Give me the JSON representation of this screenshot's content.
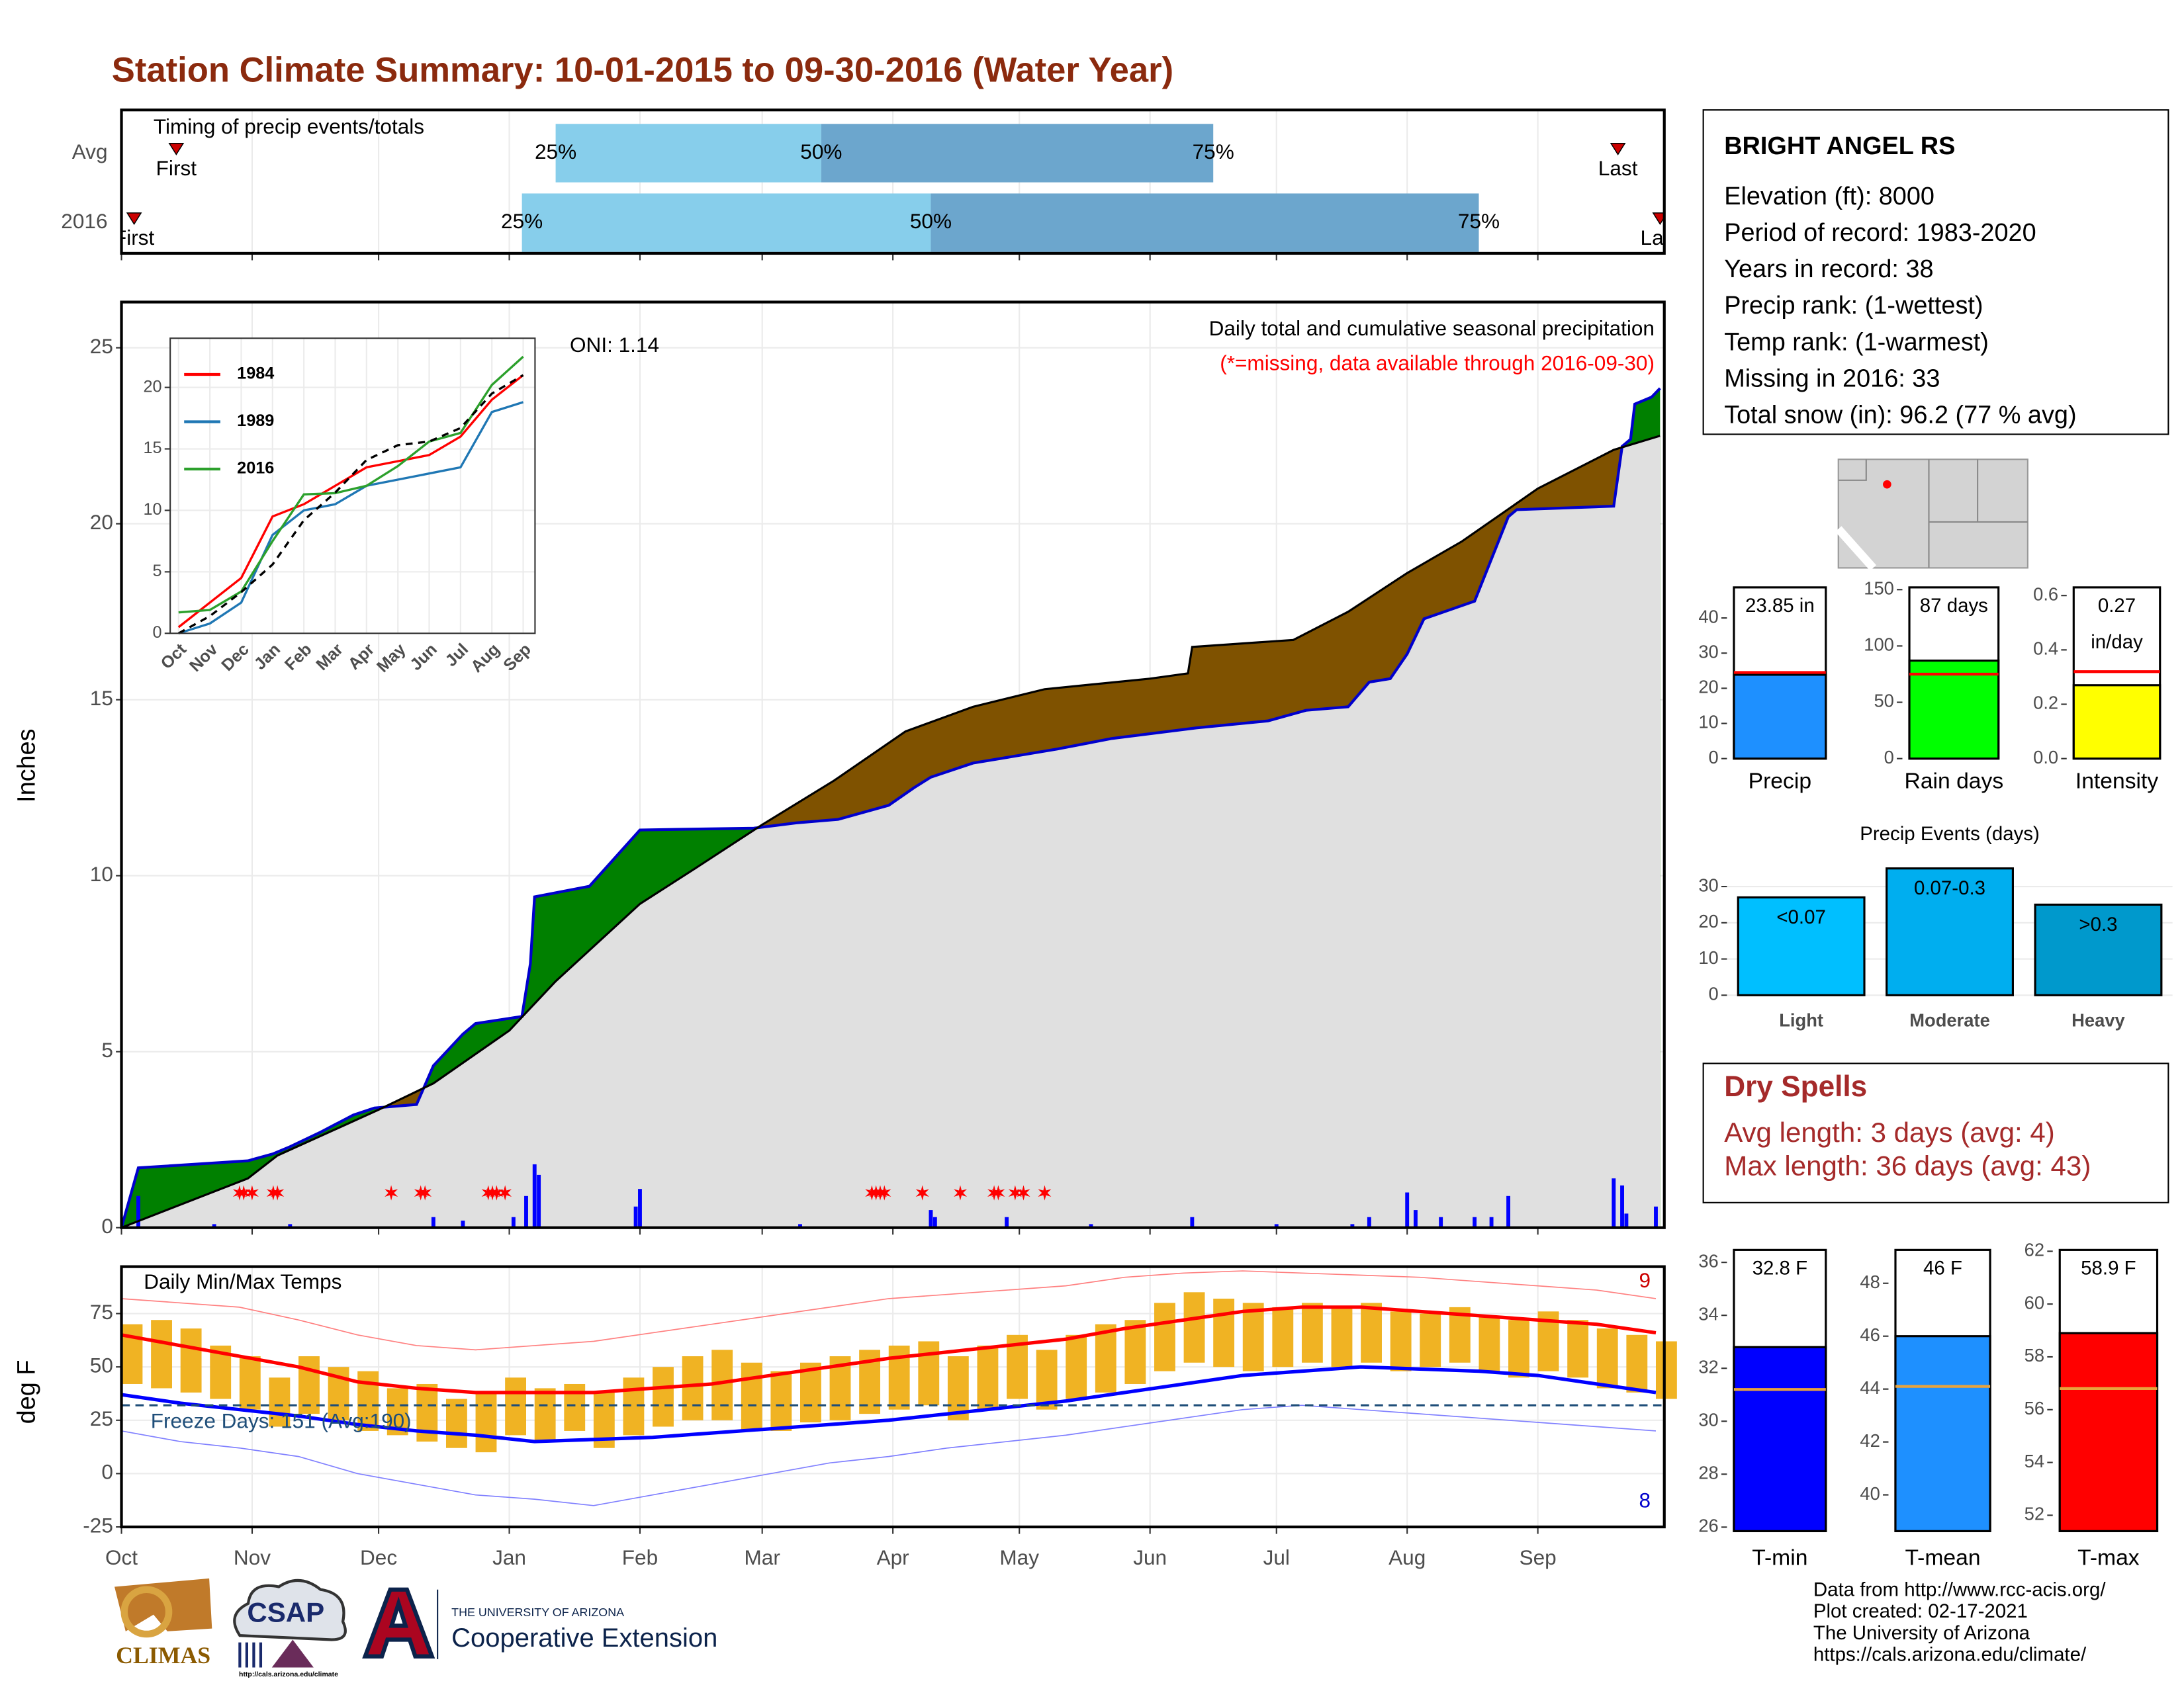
{
  "title": "Station Climate Summary: 10-01-2015 to 09-30-2016 (Water Year)",
  "station": {
    "name": "BRIGHT ANGEL RS",
    "lines": [
      "Elevation (ft): 8000",
      "Period of record: 1983-2020",
      "Years in record: 38",
      "Precip rank:  (1-wettest)",
      "Temp rank:  (1-warmest)",
      "Missing in 2016: 33",
      "Total snow (in): 96.2 (77 % avg)"
    ]
  },
  "dry_spells": {
    "title": "Dry Spells",
    "lines": [
      "Avg length: 3 days (avg: 4)",
      "Max length: 36 days (avg: 43)"
    ]
  },
  "footer": [
    "Data from http://www.rcc-acis.org/",
    "Plot created: 02-17-2021",
    "The University of Arizona",
    "https://cals.arizona.edu/climate/"
  ],
  "logos": {
    "climas": "CLIMAS",
    "csap": "CSAP",
    "csap_url": "http://cals.arizona.edu/climate",
    "ua_top": "THE UNIVERSITY OF ARIZONA",
    "ua_bottom": "Cooperative Extension"
  },
  "chart_data": [
    {
      "type": "timing",
      "title": "Timing of precip events/totals",
      "xlim": [
        0,
        366
      ],
      "quantile_labels": [
        "25%",
        "50%",
        "75%"
      ],
      "first_label": "First",
      "last_label": "Last",
      "colors": [
        "#87ceeb",
        "#6ca6cd"
      ],
      "rows": [
        {
          "label": "Avg",
          "quantiles": [
            103,
            166,
            259
          ],
          "first": 13,
          "last": 355
        },
        {
          "label": "2016",
          "quantiles": [
            95,
            192,
            322
          ],
          "first": 3,
          "last": 365
        }
      ]
    },
    {
      "type": "area",
      "title": "Daily total and cumulative seasonal precipitation",
      "note": "(*=missing, data available through 2016-09-30)",
      "oni": "ONI: 1.14",
      "ylabel": "Inches",
      "xlim": [
        0,
        366
      ],
      "ylim": [
        0,
        26.3
      ],
      "yticks": [
        0,
        5,
        10,
        15,
        20,
        25
      ],
      "grid": true,
      "above_color": "#008000",
      "below_color": "#7f5200",
      "base_color": "#e0e0e0",
      "series": [
        {
          "color": "#0000cd",
          "x": [
            0,
            4,
            30,
            36,
            40,
            47,
            55,
            60,
            70,
            74,
            81,
            84,
            95,
            97,
            98,
            111,
            123,
            150,
            160,
            170,
            182,
            188,
            192,
            202,
            222,
            235,
            255,
            272,
            281,
            291,
            296,
            301,
            305,
            309,
            321,
            329,
            331,
            354,
            356,
            358,
            359,
            363,
            365
          ],
          "values": [
            0,
            1.7,
            1.9,
            2.1,
            2.3,
            2.7,
            3.2,
            3.4,
            3.5,
            4.6,
            5.5,
            5.8,
            6.0,
            7.5,
            9.4,
            9.7,
            11.3,
            11.35,
            11.5,
            11.6,
            12.0,
            12.5,
            12.8,
            13.2,
            13.6,
            13.9,
            14.2,
            14.4,
            14.7,
            14.8,
            15.5,
            15.6,
            16.3,
            17.3,
            17.8,
            20.2,
            20.4,
            20.5,
            22.2,
            22.4,
            23.4,
            23.6,
            23.85
          ]
        },
        {
          "color": "#000000",
          "x": [
            0,
            30,
            37,
            61,
            74,
            92,
            103,
            123,
            136,
            152,
            169,
            186,
            202,
            219,
            244,
            253,
            254,
            278,
            291,
            305,
            318,
            336,
            354,
            365
          ],
          "values": [
            0,
            1.4,
            2.05,
            3.35,
            4.1,
            5.6,
            7.0,
            9.2,
            10.2,
            11.45,
            12.7,
            14.1,
            14.8,
            15.3,
            15.6,
            15.75,
            16.5,
            16.7,
            17.5,
            18.6,
            19.5,
            21.0,
            22.1,
            22.5
          ]
        }
      ],
      "daily": {
        "color": "#0000ff",
        "x": [
          4,
          22,
          40,
          74,
          81,
          93,
          96,
          98,
          99,
          122,
          123,
          161,
          192,
          193,
          210,
          230,
          254,
          274,
          292,
          296,
          305,
          307,
          313,
          321,
          325,
          329,
          354,
          356,
          357,
          364
        ],
        "values": [
          0.9,
          0.1,
          0.1,
          0.3,
          0.2,
          0.3,
          0.9,
          1.8,
          1.5,
          0.6,
          1.1,
          0.1,
          0.5,
          0.3,
          0.3,
          0.1,
          0.3,
          0.1,
          0.1,
          0.3,
          1.0,
          0.5,
          0.3,
          0.3,
          0.3,
          0.9,
          1.4,
          1.2,
          0.4,
          0.6
        ]
      },
      "missing": {
        "color": "#ff0000",
        "x": [
          28,
          29,
          31,
          36,
          37,
          64,
          71,
          72,
          87,
          88,
          89,
          91,
          178,
          179,
          180,
          181,
          190,
          199,
          207,
          208,
          212,
          214,
          219
        ]
      }
    },
    {
      "type": "line",
      "categories": [
        "Oct",
        "Nov",
        "Dec",
        "Jan",
        "Feb",
        "Mar",
        "Apr",
        "May",
        "Jun",
        "Jul",
        "Aug",
        "Sep"
      ],
      "ylim": [
        0,
        24
      ],
      "yticks": [
        0,
        5,
        10,
        15,
        20
      ],
      "grid": true,
      "series": [
        {
          "name": "1984",
          "color": "#ff0000",
          "values": [
            0.5,
            2.5,
            4.5,
            9.5,
            10.5,
            12,
            13.5,
            14,
            14.5,
            16,
            19,
            21
          ]
        },
        {
          "name": "1989",
          "color": "#1f77b4",
          "values": [
            0,
            0.8,
            2.5,
            8,
            10,
            10.5,
            12,
            12.5,
            13,
            13.5,
            18,
            18.8
          ]
        },
        {
          "name": "2016",
          "color": "#2ca02c",
          "values": [
            1.7,
            1.9,
            3.4,
            7.5,
            11.3,
            11.4,
            12.0,
            13.6,
            15.6,
            16.3,
            20.2,
            22.5
          ]
        },
        {
          "color": "#000000",
          "dash": true,
          "values": [
            0,
            1.4,
            3.35,
            5.6,
            9.2,
            11.45,
            14.1,
            15.3,
            15.6,
            16.7,
            19.5,
            21.0
          ]
        }
      ]
    },
    {
      "type": "temperature",
      "title": "Daily Min/Max Temps",
      "ylabel": "deg F",
      "note": "Freeze Days: 151 (Avg:190)",
      "xlim": [
        0,
        366
      ],
      "ylim": [
        -25,
        97
      ],
      "xticks": [
        {
          "value": 0,
          "label": "Oct"
        },
        {
          "value": 31,
          "label": "Nov"
        },
        {
          "value": 61,
          "label": "Dec"
        },
        {
          "value": 92,
          "label": "Jan"
        },
        {
          "value": 123,
          "label": "Feb"
        },
        {
          "value": 152,
          "label": "Mar"
        },
        {
          "value": 183,
          "label": "Apr"
        },
        {
          "value": 213,
          "label": "May"
        },
        {
          "value": 244,
          "label": "Jun"
        },
        {
          "value": 274,
          "label": "Jul"
        },
        {
          "value": 305,
          "label": "Aug"
        },
        {
          "value": 336,
          "label": "Sep"
        }
      ],
      "yticks": [
        -25,
        0,
        25,
        50,
        75
      ],
      "grid": true,
      "freeze": 32,
      "high_count": 9,
      "low_count": 8,
      "x": [
        0,
        14,
        28,
        42,
        56,
        70,
        84,
        98,
        112,
        126,
        140,
        154,
        168,
        182,
        196,
        210,
        224,
        238,
        252,
        266,
        280,
        294,
        308,
        322,
        336,
        350,
        364
      ],
      "series": [
        {
          "color": "#ff8080",
          "width": 0.8,
          "values": [
            82,
            80,
            78,
            72,
            65,
            60,
            58,
            60,
            62,
            66,
            70,
            74,
            78,
            82,
            84,
            86,
            88,
            92,
            94,
            95,
            94,
            93,
            92,
            90,
            88,
            86,
            82
          ]
        },
        {
          "color": "#8080ff",
          "width": 0.8,
          "values": [
            20,
            15,
            12,
            8,
            0,
            -5,
            -10,
            -12,
            -15,
            -10,
            -5,
            0,
            5,
            8,
            12,
            15,
            18,
            22,
            26,
            30,
            32,
            30,
            28,
            26,
            24,
            22,
            20
          ]
        },
        {
          "color": "#ff0000",
          "width": 2.5,
          "values": [
            65,
            60,
            55,
            50,
            43,
            40,
            38,
            38,
            38,
            40,
            42,
            46,
            50,
            54,
            57,
            60,
            63,
            68,
            72,
            76,
            78,
            78,
            76,
            74,
            72,
            70,
            66
          ]
        },
        {
          "color": "#0000ff",
          "width": 2.5,
          "values": [
            37,
            33,
            30,
            27,
            23,
            20,
            18,
            15,
            16,
            17,
            19,
            21,
            23,
            25,
            28,
            31,
            34,
            38,
            42,
            46,
            48,
            50,
            49,
            48,
            46,
            42,
            38
          ]
        }
      ],
      "bars": {
        "color": "#f0b323",
        "x": [
          0,
          7,
          14,
          21,
          28,
          35,
          42,
          49,
          56,
          63,
          70,
          77,
          84,
          91,
          98,
          105,
          112,
          119,
          126,
          133,
          140,
          147,
          154,
          161,
          168,
          175,
          182,
          189,
          196,
          203,
          210,
          217,
          224,
          231,
          238,
          245,
          252,
          259,
          266,
          273,
          280,
          287,
          294,
          301,
          308,
          315,
          322,
          329,
          336,
          343,
          350,
          357,
          364
        ],
        "max": [
          70,
          72,
          68,
          60,
          55,
          45,
          55,
          50,
          48,
          40,
          42,
          35,
          38,
          45,
          40,
          42,
          38,
          45,
          50,
          55,
          58,
          52,
          48,
          52,
          55,
          58,
          60,
          62,
          55,
          60,
          65,
          58,
          65,
          70,
          72,
          80,
          85,
          82,
          80,
          78,
          80,
          78,
          80,
          76,
          75,
          78,
          74,
          72,
          76,
          72,
          68,
          65,
          62
        ],
        "min": [
          42,
          40,
          38,
          35,
          30,
          22,
          28,
          25,
          20,
          18,
          15,
          12,
          10,
          18,
          15,
          20,
          12,
          18,
          22,
          25,
          25,
          20,
          20,
          24,
          25,
          28,
          30,
          32,
          25,
          30,
          35,
          30,
          35,
          38,
          42,
          48,
          52,
          50,
          48,
          50,
          52,
          50,
          52,
          48,
          50,
          52,
          48,
          45,
          48,
          45,
          40,
          38,
          35
        ]
      }
    },
    {
      "type": "bar",
      "categories": [
        "Precip"
      ],
      "values": [
        23.85
      ],
      "value_labels": [
        "23.85 in"
      ],
      "average": 24.5,
      "average_color": "#ff0000",
      "color": "#1e90ff",
      "ylim": [
        0,
        48.7
      ],
      "yticks": [
        0,
        10,
        20,
        30,
        40
      ]
    },
    {
      "type": "bar",
      "categories": [
        "Rain days"
      ],
      "values": [
        87
      ],
      "value_labels": [
        "87 days"
      ],
      "average": 75,
      "average_color": "#ff0000",
      "color": "#00ff00",
      "ylim": [
        0,
        152
      ],
      "yticks": [
        0,
        50,
        100,
        150
      ]
    },
    {
      "type": "bar",
      "categories": [
        "Intensity"
      ],
      "values": [
        0.27
      ],
      "value_labels": [
        "0.27"
      ],
      "unit": "in/day",
      "average": 0.32,
      "average_color": "#ff0000",
      "color": "#ffff00",
      "ylim": [
        0,
        0.63
      ],
      "yticks": [
        {
          "value": 0,
          "label": "0.0"
        },
        0.2,
        0.4,
        0.6
      ]
    },
    {
      "type": "bar",
      "title": "Precip Events (days)",
      "categories": [
        "Light",
        "Moderate",
        "Heavy"
      ],
      "values": [
        27,
        35,
        25
      ],
      "bin_labels": [
        "<0.07",
        "0.07-0.3",
        ">0.3"
      ],
      "colors": [
        "#00bfff",
        "#00aeef",
        "#0099cc"
      ],
      "ylim": [
        0,
        36.5
      ],
      "yticks": [
        0,
        10,
        20,
        30
      ],
      "grid": true
    },
    {
      "type": "bar",
      "categories": [
        "T-min"
      ],
      "values": [
        32.8
      ],
      "value_labels": [
        "32.8 F"
      ],
      "average": 31.2,
      "average_color": "#e8a33d",
      "color": "#0000ff",
      "ylim": [
        25.85,
        36.47
      ],
      "yticks": [
        26,
        28,
        30,
        32,
        34,
        36
      ]
    },
    {
      "type": "bar",
      "categories": [
        "T-mean"
      ],
      "values": [
        46
      ],
      "value_labels": [
        "46 F"
      ],
      "average": 44.1,
      "average_color": "#e8a33d",
      "color": "#1e90ff",
      "ylim": [
        38.63,
        49.26
      ],
      "yticks": [
        40,
        42,
        44,
        46,
        48
      ]
    },
    {
      "type": "bar",
      "categories": [
        "T-max"
      ],
      "values": [
        58.9
      ],
      "value_labels": [
        "58.9 F"
      ],
      "average": 56.8,
      "average_color": "#e8a33d",
      "color": "#ff0000",
      "ylim": [
        51.4,
        62.05
      ],
      "yticks": [
        52,
        54,
        56,
        58,
        60,
        62
      ]
    }
  ]
}
